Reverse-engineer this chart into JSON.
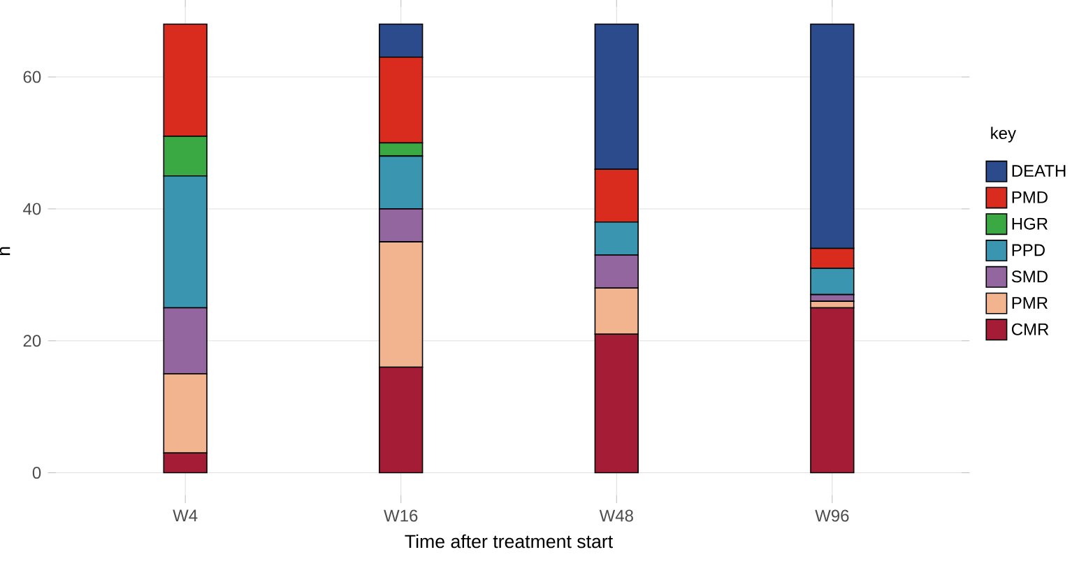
{
  "chart_data": {
    "type": "bar",
    "stacked": true,
    "xlabel": "Time after treatment start",
    "ylabel": "n",
    "legend_title": "key",
    "legend": "right",
    "grid": true,
    "categories": [
      "W4",
      "W16",
      "W48",
      "W96"
    ],
    "ylim": [
      -3.4,
      70.6
    ],
    "yticks": [
      0,
      20,
      40,
      60
    ],
    "series": [
      {
        "name": "CMR",
        "color": "#a51c36",
        "values": [
          3,
          16,
          21,
          25
        ]
      },
      {
        "name": "PMR",
        "color": "#f2b48f",
        "values": [
          12,
          19,
          7,
          1
        ]
      },
      {
        "name": "SMD",
        "color": "#9466a0",
        "values": [
          10,
          5,
          5,
          1
        ]
      },
      {
        "name": "PPD",
        "color": "#3a96b0",
        "values": [
          20,
          8,
          5,
          4
        ]
      },
      {
        "name": "HGR",
        "color": "#3aa843",
        "values": [
          6,
          2,
          0,
          0
        ]
      },
      {
        "name": "PMD",
        "color": "#d92b1e",
        "values": [
          17,
          13,
          8,
          3
        ]
      },
      {
        "name": "DEATH",
        "color": "#2b4b8c",
        "values": [
          0,
          5,
          22,
          34
        ]
      }
    ]
  }
}
